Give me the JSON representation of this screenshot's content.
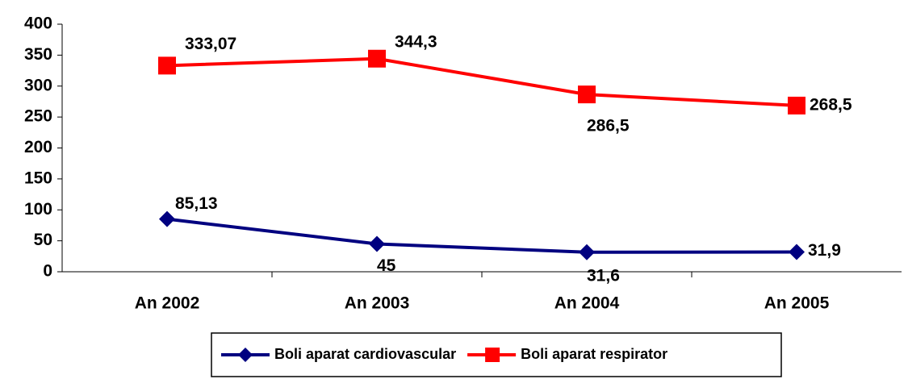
{
  "chart_data": {
    "type": "line",
    "categories": [
      "An 2002",
      "An 2003",
      "An 2004",
      "An 2005"
    ],
    "series": [
      {
        "name": "Boli aparat cardiovascular",
        "color": "#000080",
        "marker": "diamond",
        "values": [
          85.13,
          45,
          31.6,
          31.9
        ],
        "value_labels": [
          "85,13",
          "45",
          "31,6",
          "31,9"
        ]
      },
      {
        "name": "Boli aparat respirator",
        "color": "#ff0000",
        "marker": "square",
        "values": [
          333.07,
          344.3,
          286.5,
          268.5
        ],
        "value_labels": [
          "333,07",
          "344,3",
          "286,5",
          "268,5"
        ]
      }
    ],
    "ylim": [
      0,
      400
    ],
    "yticks": [
      0,
      50,
      100,
      150,
      200,
      250,
      300,
      350,
      400
    ],
    "grid": false,
    "legend": "bottom"
  }
}
